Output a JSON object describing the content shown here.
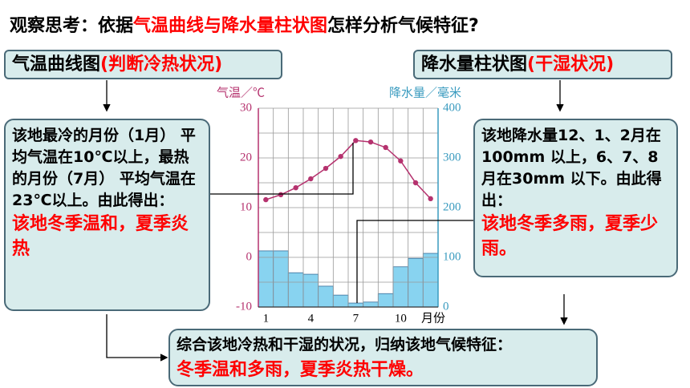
{
  "header": {
    "title_parts": [
      "观察思考：依据",
      "气温曲线与降水量柱状图",
      "怎样分析气候特征?"
    ]
  },
  "labels": {
    "left": [
      "气温曲线图",
      "(判断冷热状况)"
    ],
    "right": [
      "降水量柱状图",
      "(干湿状况)"
    ]
  },
  "boxes": {
    "left": {
      "text": "该地最冷的月份（1月） 平均气温在10℃以上，最热的月份（7月） 平均气温在23℃以上。由此得出：",
      "conclusion": "该地冬季温和，夏季炎热"
    },
    "right": {
      "text": "该地降水量12、1、2月在100mm 以上，6、7、8 月在30mm 以下。由此得出：",
      "conclusion": "该地冬季多雨，夏季少雨。"
    },
    "summary": {
      "text": "综合该地冷热和干湿的状况，归纳该地气候特征：",
      "conclusion": "冬季温和多雨，夏季炎热干燥。"
    }
  },
  "chart_data": {
    "type": "climograph",
    "x_label": "月份",
    "y_label": "气温／℃",
    "y2_label": "降水量／毫米",
    "categories": [
      "1",
      null,
      null,
      "4",
      null,
      null,
      "7",
      null,
      null,
      "10",
      null,
      null
    ],
    "series": [
      {
        "type": "line",
        "color": "#b5326e",
        "values": [
          11.6,
          12.6,
          14,
          15.8,
          17.9,
          20.3,
          23.5,
          23.2,
          22.1,
          19.4,
          15,
          11.8
        ]
      },
      {
        "type": "bar",
        "axis": "y2",
        "color": "#88d3f0",
        "values": [
          113,
          113,
          69,
          66,
          42,
          24,
          8,
          10,
          27,
          81,
          98,
          108
        ]
      }
    ],
    "ylim": [
      -10,
      30
    ],
    "yticks": [
      -10,
      0,
      10,
      20,
      30
    ],
    "y2lim": [
      0,
      400
    ],
    "y2ticks": [
      0,
      100,
      200,
      300,
      400
    ],
    "y_color": "#b5326e",
    "y2_color": "#3a9bbf",
    "grid": true
  }
}
